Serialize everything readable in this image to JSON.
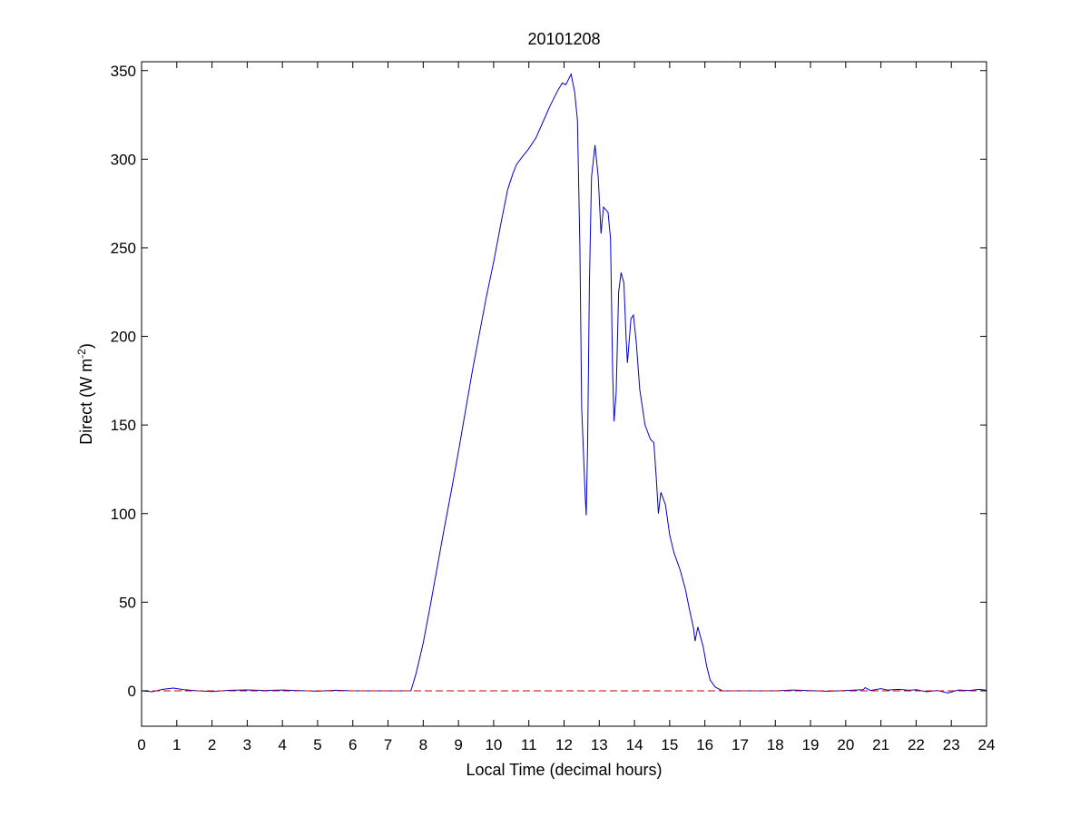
{
  "chart_data": {
    "type": "line",
    "title": "20101208",
    "xlabel": "Local Time (decimal hours)",
    "ylabel": {
      "base": "Direct (W m",
      "superscript": "-2",
      "closing": ")"
    },
    "xlim": [
      0,
      24
    ],
    "ylim": [
      -20,
      355
    ],
    "xticks": [
      0,
      1,
      2,
      3,
      4,
      5,
      6,
      7,
      8,
      9,
      10,
      11,
      12,
      13,
      14,
      15,
      16,
      17,
      18,
      19,
      20,
      21,
      22,
      23,
      24
    ],
    "yticks": [
      0,
      50,
      100,
      150,
      200,
      250,
      300,
      350
    ],
    "grid": false,
    "series": [
      {
        "color": "#0000cc",
        "style": "solid",
        "points": [
          [
            0,
            0
          ],
          [
            0.3,
            -0.5
          ],
          [
            0.6,
            0.8
          ],
          [
            0.9,
            1.5
          ],
          [
            1.2,
            0.6
          ],
          [
            1.6,
            0
          ],
          [
            2.0,
            -0.4
          ],
          [
            2.5,
            0.3
          ],
          [
            3.0,
            0.5
          ],
          [
            3.5,
            0.2
          ],
          [
            4.0,
            0.4
          ],
          [
            4.5,
            0.1
          ],
          [
            5.0,
            -0.2
          ],
          [
            5.5,
            0.3
          ],
          [
            6.0,
            0
          ],
          [
            6.5,
            0
          ],
          [
            7.0,
            0
          ],
          [
            7.5,
            0
          ],
          [
            7.65,
            0
          ],
          [
            7.8,
            10
          ],
          [
            8.0,
            27
          ],
          [
            8.2,
            48
          ],
          [
            8.4,
            70
          ],
          [
            8.6,
            92
          ],
          [
            8.8,
            113
          ],
          [
            8.9,
            124
          ],
          [
            9.0,
            135
          ],
          [
            9.2,
            158
          ],
          [
            9.4,
            181
          ],
          [
            9.6,
            202
          ],
          [
            9.8,
            223
          ],
          [
            10.0,
            242
          ],
          [
            10.2,
            263
          ],
          [
            10.4,
            283
          ],
          [
            10.55,
            292
          ],
          [
            10.65,
            297
          ],
          [
            10.8,
            301
          ],
          [
            11.0,
            306
          ],
          [
            11.2,
            312
          ],
          [
            11.4,
            321
          ],
          [
            11.6,
            330
          ],
          [
            11.8,
            338
          ],
          [
            11.95,
            343
          ],
          [
            12.05,
            342
          ],
          [
            12.2,
            348
          ],
          [
            12.3,
            338
          ],
          [
            12.38,
            322
          ],
          [
            12.45,
            250
          ],
          [
            12.5,
            160
          ],
          [
            12.55,
            135
          ],
          [
            12.6,
            110
          ],
          [
            12.63,
            99
          ],
          [
            12.67,
            140
          ],
          [
            12.72,
            230
          ],
          [
            12.78,
            290
          ],
          [
            12.88,
            308
          ],
          [
            12.97,
            290
          ],
          [
            13.05,
            258
          ],
          [
            13.12,
            273
          ],
          [
            13.25,
            270
          ],
          [
            13.32,
            255
          ],
          [
            13.38,
            180
          ],
          [
            13.42,
            152
          ],
          [
            13.48,
            168
          ],
          [
            13.55,
            225
          ],
          [
            13.62,
            236
          ],
          [
            13.7,
            230
          ],
          [
            13.76,
            200
          ],
          [
            13.8,
            185
          ],
          [
            13.9,
            210
          ],
          [
            13.97,
            212
          ],
          [
            14.05,
            197
          ],
          [
            14.15,
            170
          ],
          [
            14.3,
            150
          ],
          [
            14.45,
            142
          ],
          [
            14.55,
            140
          ],
          [
            14.62,
            120
          ],
          [
            14.68,
            100
          ],
          [
            14.75,
            112
          ],
          [
            14.88,
            105
          ],
          [
            15.0,
            88
          ],
          [
            15.12,
            78
          ],
          [
            15.3,
            68
          ],
          [
            15.45,
            57
          ],
          [
            15.55,
            47
          ],
          [
            15.68,
            35
          ],
          [
            15.72,
            28
          ],
          [
            15.8,
            36
          ],
          [
            15.95,
            25
          ],
          [
            16.05,
            14
          ],
          [
            16.15,
            6
          ],
          [
            16.3,
            2
          ],
          [
            16.5,
            0
          ],
          [
            17.0,
            0
          ],
          [
            17.5,
            0
          ],
          [
            18.0,
            0
          ],
          [
            18.5,
            0.4
          ],
          [
            19.0,
            0.1
          ],
          [
            19.5,
            -0.3
          ],
          [
            20.0,
            0.2
          ],
          [
            20.5,
            0.6
          ],
          [
            20.55,
            1.8
          ],
          [
            20.7,
            0.2
          ],
          [
            21.0,
            1.2
          ],
          [
            21.2,
            0.4
          ],
          [
            21.5,
            0.8
          ],
          [
            21.8,
            0.3
          ],
          [
            22.0,
            0.6
          ],
          [
            22.3,
            -0.5
          ],
          [
            22.6,
            0.2
          ],
          [
            22.9,
            -1.2
          ],
          [
            23.2,
            0.4
          ],
          [
            23.5,
            0.2
          ],
          [
            23.8,
            0.8
          ],
          [
            24.0,
            0.3
          ]
        ]
      },
      {
        "color": "#cc0000",
        "style": "dashed",
        "points": [
          [
            0,
            0
          ],
          [
            24,
            0
          ]
        ]
      }
    ]
  }
}
